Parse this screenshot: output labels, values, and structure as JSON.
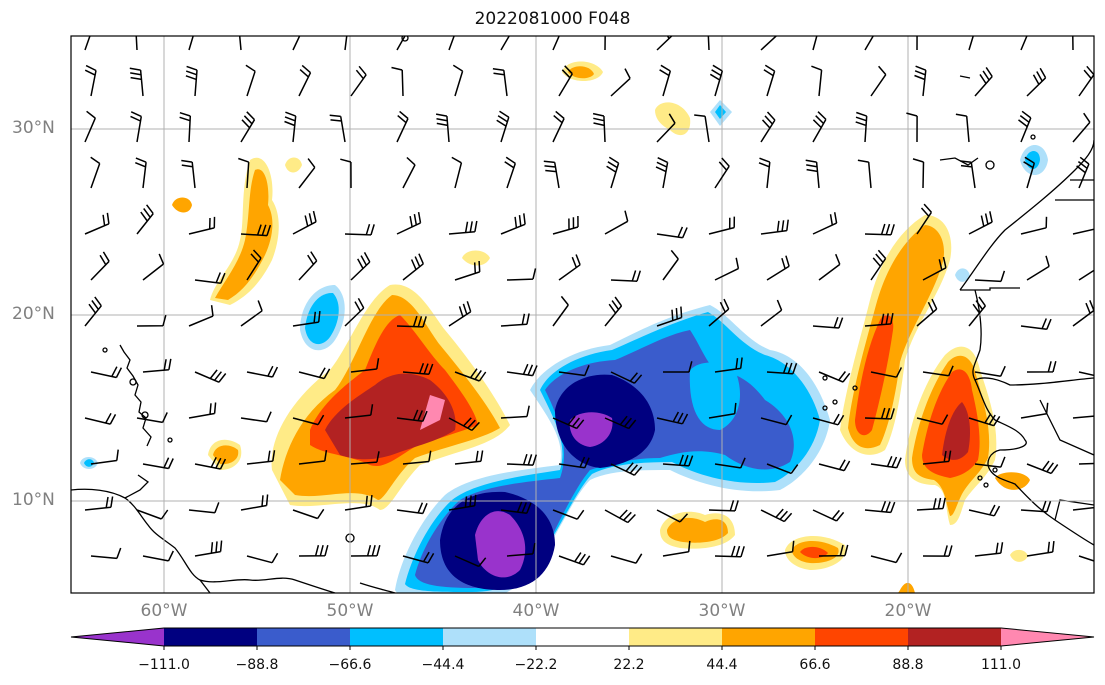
{
  "title": "2022081000 F048",
  "lat_labels": [
    "30°N",
    "20°N",
    "10°N"
  ],
  "lon_labels": [
    "60°W",
    "50°W",
    "40°W",
    "30°W",
    "20°W"
  ],
  "colorbar": {
    "colors": [
      "#9933cc",
      "#000080",
      "#3a5ccc",
      "#00bfff",
      "#aee0fa",
      "#ffffff",
      "#ffeb87",
      "#ffa500",
      "#ff4500",
      "#b22222",
      "#ff88b0"
    ],
    "labels": [
      "−111.0",
      "−88.8",
      "−66.6",
      "−44.4",
      "−22.2",
      "22.2",
      "44.4",
      "66.6",
      "88.8",
      "111.0"
    ]
  },
  "field_colors": {
    "neg_weak": "#aee0fa",
    "neg_mod": "#00bfff",
    "neg_strong": "#3a5ccc",
    "neg_vstrong": "#000080",
    "neg_extreme": "#9933cc",
    "pos_weak": "#ffeb87",
    "pos_mod": "#ffa500",
    "pos_strong": "#ff4500",
    "pos_vstrong": "#b22222",
    "pos_extreme": "#ff88b0"
  }
}
